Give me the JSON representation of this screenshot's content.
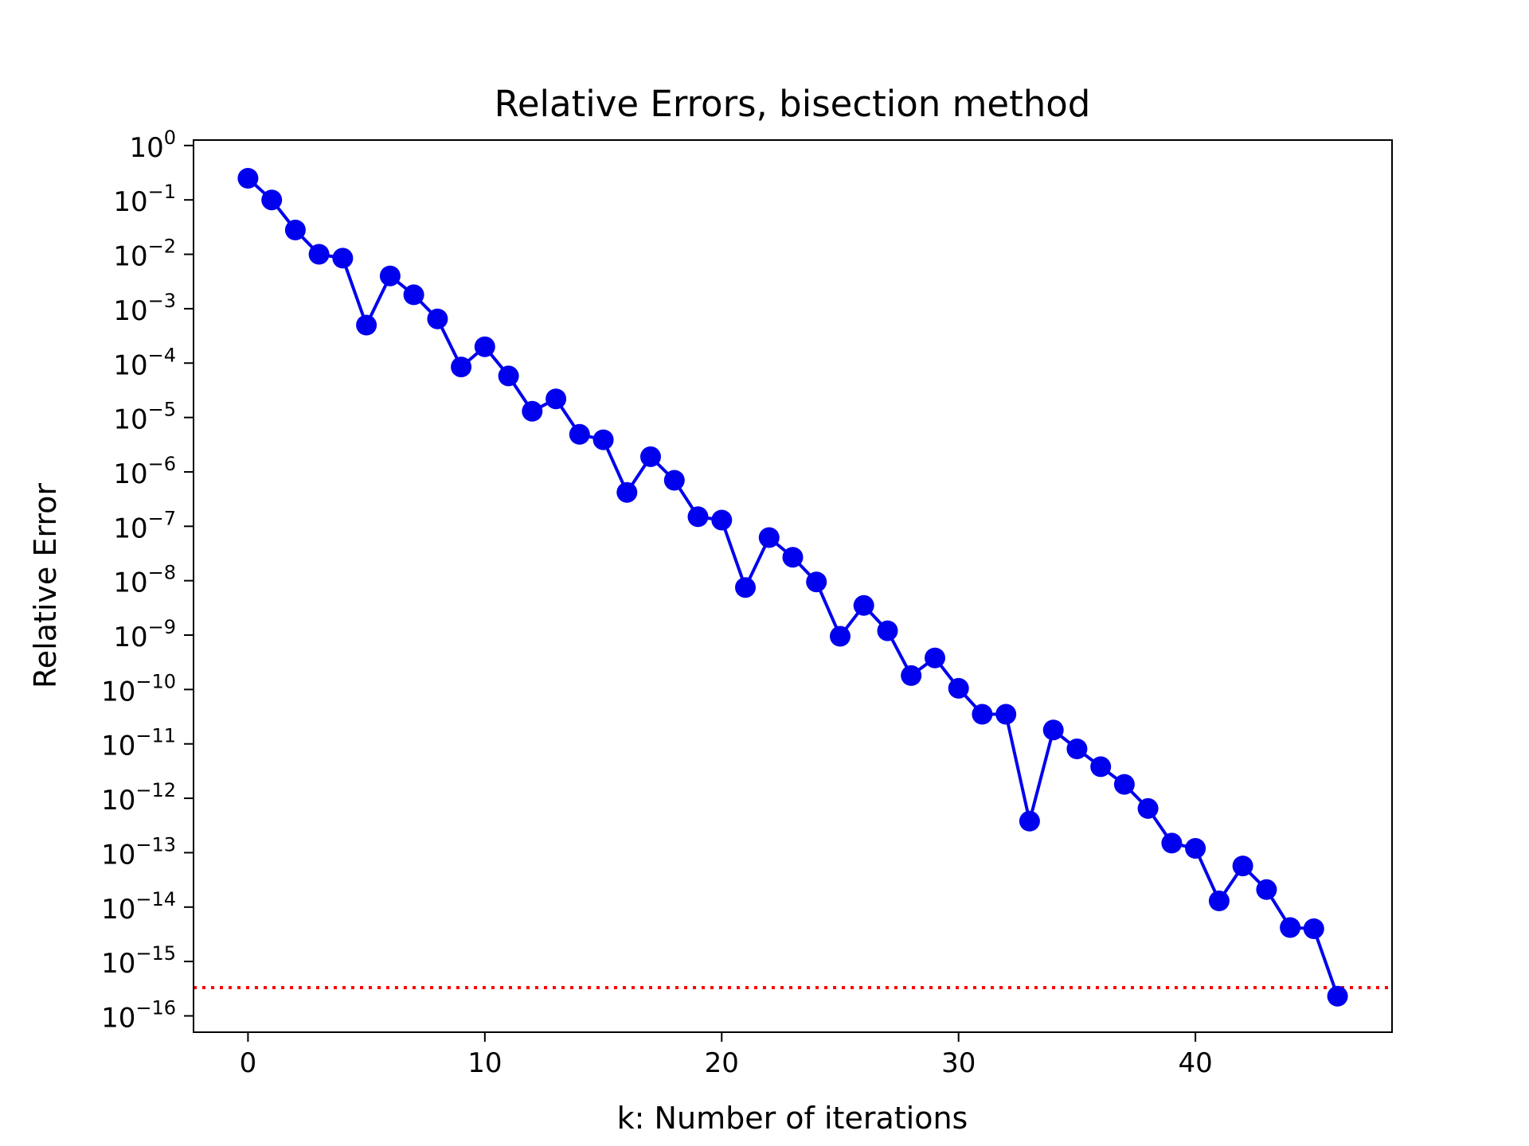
{
  "chart_data": {
    "type": "line",
    "title": "Relative Errors, bisection method",
    "xlabel": "k: Number of iterations",
    "ylabel": "Relative Error",
    "yscale": "log",
    "xlim": [
      -2.3,
      48.3
    ],
    "ylim_exp": [
      -16.3,
      0.1
    ],
    "x_ticks": [
      0,
      10,
      20,
      30,
      40
    ],
    "x_tick_labels": [
      "0",
      "10",
      "20",
      "30",
      "40"
    ],
    "y_tick_base": "10",
    "y_tick_exps": [
      0,
      -1,
      -2,
      -3,
      -4,
      -5,
      -6,
      -7,
      -8,
      -9,
      -10,
      -11,
      -12,
      -13,
      -14,
      -15,
      -16
    ],
    "y_tick_exp_labels": [
      "0",
      "−1",
      "−2",
      "−3",
      "−4",
      "−5",
      "−6",
      "−7",
      "−8",
      "−9",
      "−10",
      "−11",
      "−12",
      "−13",
      "−14",
      "−15",
      "−16"
    ],
    "grid": false,
    "series": [
      {
        "color": "#0000ee",
        "marker": "circle",
        "x": [
          0,
          1,
          2,
          3,
          4,
          5,
          6,
          7,
          8,
          9,
          10,
          11,
          12,
          13,
          14,
          15,
          16,
          17,
          18,
          19,
          20,
          21,
          22,
          23,
          24,
          25,
          26,
          27,
          28,
          29,
          30,
          31,
          32,
          33,
          34,
          35,
          36,
          37,
          38,
          39,
          40,
          41,
          42,
          43,
          44,
          45,
          46
        ],
        "y": [
          0.25,
          0.1,
          0.028,
          0.01,
          0.0085,
          0.0005,
          0.004,
          0.0018,
          0.00065,
          8.5e-05,
          0.0002,
          5.8e-05,
          1.3e-05,
          2.2e-05,
          4.9e-06,
          3.9e-06,
          4.2e-07,
          1.9e-06,
          7e-07,
          1.5e-07,
          1.3e-07,
          7.5e-09,
          6.2e-08,
          2.7e-08,
          9.5e-09,
          9.5e-10,
          3.5e-09,
          1.2e-09,
          1.8e-10,
          3.8e-10,
          1.05e-10,
          3.5e-11,
          3.5e-11,
          3.8e-13,
          1.8e-11,
          8.1e-12,
          3.8e-12,
          1.8e-12,
          6.5e-13,
          1.5e-13,
          1.2e-13,
          1.3e-14,
          5.7e-14,
          2.1e-14,
          4.2e-15,
          4e-15,
          2.3e-16
        ]
      }
    ],
    "reference_lines": [
      {
        "orientation": "horizontal",
        "y": 3.3e-16,
        "color": "#ff0000",
        "style": "dotted"
      }
    ]
  }
}
